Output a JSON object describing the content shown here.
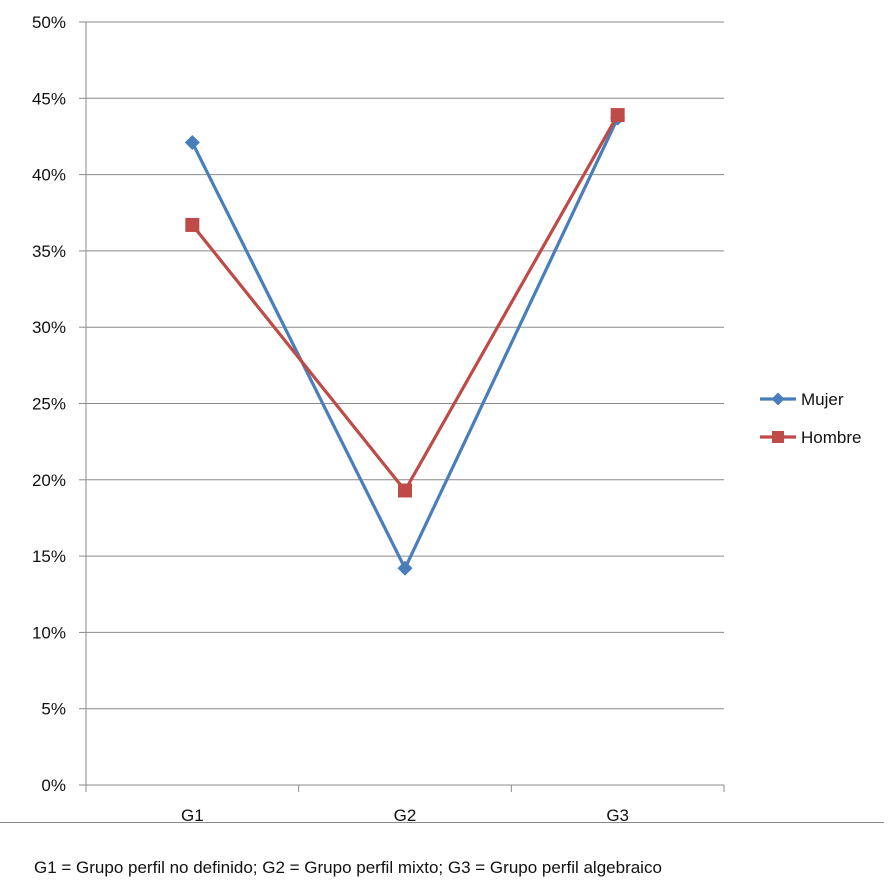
{
  "chart_data": {
    "type": "line",
    "categories": [
      "G1",
      "G2",
      "G3"
    ],
    "series": [
      {
        "name": "Mujer",
        "values": [
          42.1,
          14.2,
          43.7
        ],
        "color": "#4a7ebb",
        "marker": "diamond"
      },
      {
        "name": "Hombre",
        "values": [
          36.7,
          19.3,
          43.9
        ],
        "color": "#be4b48",
        "marker": "square"
      }
    ],
    "ylim": [
      0,
      50
    ],
    "yticks": [
      0,
      5,
      10,
      15,
      20,
      25,
      30,
      35,
      40,
      45,
      50
    ],
    "ytick_suffix": "%",
    "grid": true,
    "legend_position": "right"
  },
  "footnote": "G1 = Grupo perfil no definido; G2 = Grupo perfil mixto; G3 = Grupo perfil algebraico"
}
